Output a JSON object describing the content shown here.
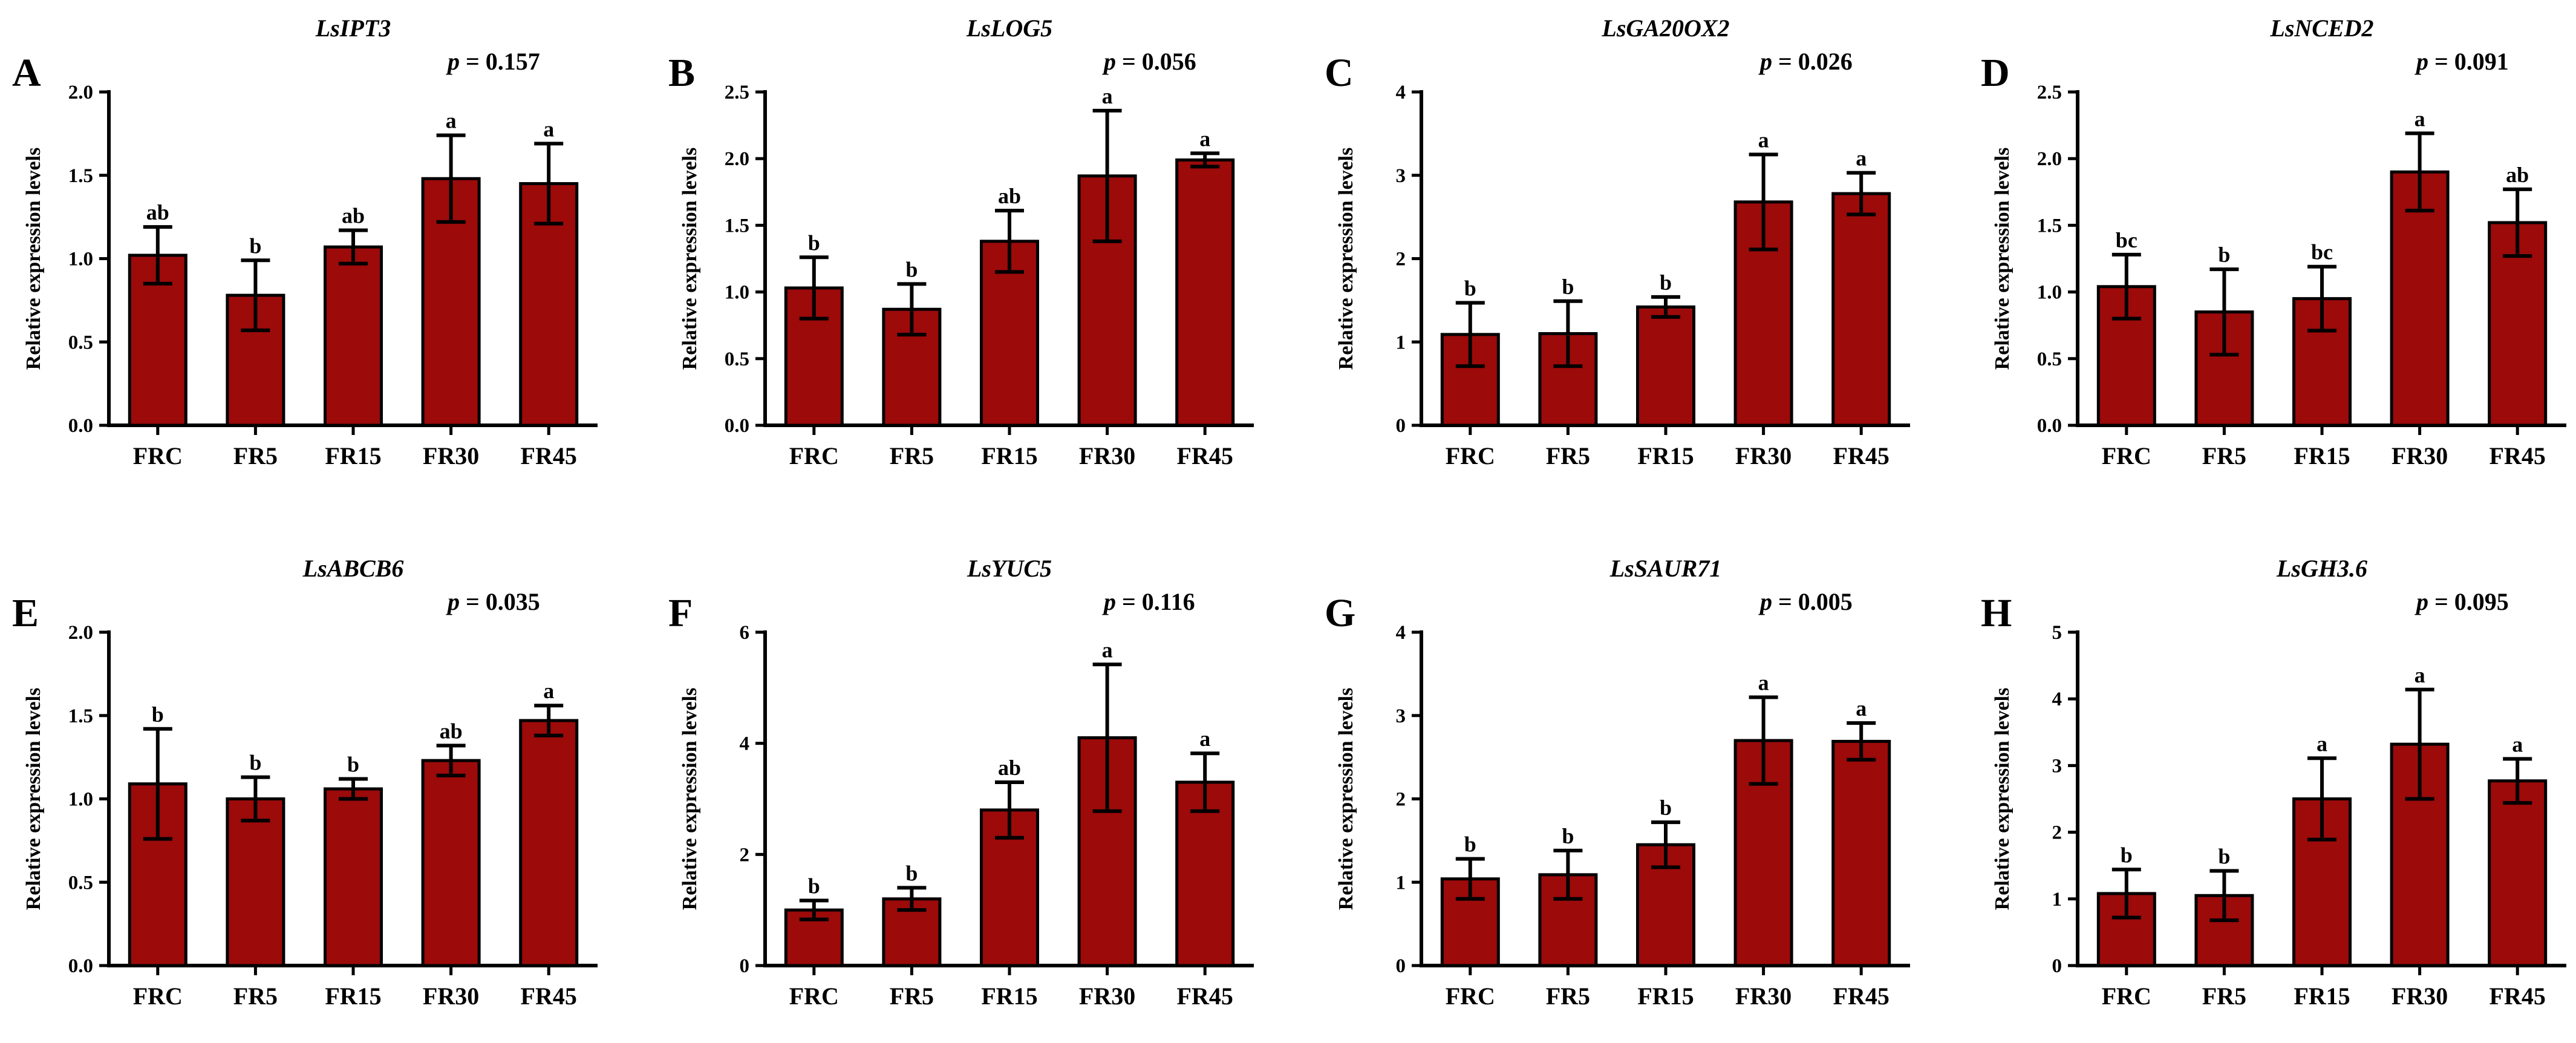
{
  "colors": {
    "bar_fill": "#9C0A0A",
    "axis": "#000000"
  },
  "chart_data": [
    {
      "type": "bar",
      "panel": "A",
      "title": "LsIPT3",
      "p_label": "p",
      "p_value": "= 0.157",
      "ylabel": "Relative expression levels",
      "ylim": [
        0,
        2.0
      ],
      "yticks": [
        0,
        0.5,
        1.0,
        1.5,
        2.0
      ],
      "ytick_labels": [
        "0.0",
        "0.5",
        "1.0",
        "1.5",
        "2.0"
      ],
      "categories": [
        "FRC",
        "FR5",
        "FR15",
        "FR30",
        "FR45"
      ],
      "values": [
        1.02,
        0.78,
        1.07,
        1.48,
        1.45
      ],
      "errors": [
        0.17,
        0.21,
        0.1,
        0.26,
        0.24
      ],
      "sig": [
        "ab",
        "b",
        "ab",
        "a",
        "a"
      ]
    },
    {
      "type": "bar",
      "panel": "B",
      "title": "LsLOG5",
      "p_label": "p",
      "p_value": "= 0.056",
      "ylabel": "Relative expression levels",
      "ylim": [
        0,
        2.5
      ],
      "yticks": [
        0,
        0.5,
        1.0,
        1.5,
        2.0,
        2.5
      ],
      "ytick_labels": [
        "0.0",
        "0.5",
        "1.0",
        "1.5",
        "2.0",
        "2.5"
      ],
      "categories": [
        "FRC",
        "FR5",
        "FR15",
        "FR30",
        "FR45"
      ],
      "values": [
        1.03,
        0.87,
        1.38,
        1.87,
        1.99
      ],
      "errors": [
        0.23,
        0.19,
        0.23,
        0.49,
        0.05
      ],
      "sig": [
        "b",
        "b",
        "ab",
        "a",
        "a"
      ]
    },
    {
      "type": "bar",
      "panel": "C",
      "title": "LsGA20OX2",
      "p_label": "p",
      "p_value": "= 0.026",
      "ylabel": "Relative expression levels",
      "ylim": [
        0,
        4
      ],
      "yticks": [
        0,
        1,
        2,
        3,
        4
      ],
      "ytick_labels": [
        "0",
        "1",
        "2",
        "3",
        "4"
      ],
      "categories": [
        "FRC",
        "FR5",
        "FR15",
        "FR30",
        "FR45"
      ],
      "values": [
        1.09,
        1.1,
        1.42,
        2.68,
        2.78
      ],
      "errors": [
        0.38,
        0.39,
        0.12,
        0.57,
        0.25
      ],
      "sig": [
        "b",
        "b",
        "b",
        "a",
        "a"
      ]
    },
    {
      "type": "bar",
      "panel": "D",
      "title": "LsNCED2",
      "p_label": "p",
      "p_value": "= 0.091",
      "ylabel": "Relative expression levels",
      "ylim": [
        0,
        2.5
      ],
      "yticks": [
        0,
        0.5,
        1.0,
        1.5,
        2.0,
        2.5
      ],
      "ytick_labels": [
        "0.0",
        "0.5",
        "1.0",
        "1.5",
        "2.0",
        "2.5"
      ],
      "categories": [
        "FRC",
        "FR5",
        "FR15",
        "FR30",
        "FR45"
      ],
      "values": [
        1.04,
        0.85,
        0.95,
        1.9,
        1.52
      ],
      "errors": [
        0.24,
        0.32,
        0.24,
        0.29,
        0.25
      ],
      "sig": [
        "bc",
        "b",
        "bc",
        "a",
        "ab"
      ]
    },
    {
      "type": "bar",
      "panel": "E",
      "title": "LsABCB6",
      "p_label": "p",
      "p_value": "= 0.035",
      "ylabel": "Relative expression levels",
      "ylim": [
        0,
        2.0
      ],
      "yticks": [
        0,
        0.5,
        1.0,
        1.5,
        2.0
      ],
      "ytick_labels": [
        "0.0",
        "0.5",
        "1.0",
        "1.5",
        "2.0"
      ],
      "categories": [
        "FRC",
        "FR5",
        "FR15",
        "FR30",
        "FR45"
      ],
      "values": [
        1.09,
        1.0,
        1.06,
        1.23,
        1.47
      ],
      "errors": [
        0.33,
        0.13,
        0.06,
        0.09,
        0.09
      ],
      "sig": [
        "b",
        "b",
        "b",
        "ab",
        "a"
      ]
    },
    {
      "type": "bar",
      "panel": "F",
      "title": "LsYUC5",
      "p_label": "p",
      "p_value": "= 0.116",
      "ylabel": "Relative expression levels",
      "ylim": [
        0,
        6
      ],
      "yticks": [
        0,
        2,
        4,
        6
      ],
      "ytick_labels": [
        "0",
        "2",
        "4",
        "6"
      ],
      "categories": [
        "FRC",
        "FR5",
        "FR15",
        "FR30",
        "FR45"
      ],
      "values": [
        1.0,
        1.2,
        2.8,
        4.1,
        3.3
      ],
      "errors": [
        0.17,
        0.2,
        0.5,
        1.32,
        0.52
      ],
      "sig": [
        "b",
        "b",
        "ab",
        "a",
        "a"
      ]
    },
    {
      "type": "bar",
      "panel": "G",
      "title": "LsSAUR71",
      "p_label": "p",
      "p_value": "= 0.005",
      "ylabel": "Relative expression levels",
      "ylim": [
        0,
        4
      ],
      "yticks": [
        0,
        1,
        2,
        3,
        4
      ],
      "ytick_labels": [
        "0",
        "1",
        "2",
        "3",
        "4"
      ],
      "categories": [
        "FRC",
        "FR5",
        "FR15",
        "FR30",
        "FR45"
      ],
      "values": [
        1.04,
        1.09,
        1.45,
        2.7,
        2.69
      ],
      "errors": [
        0.24,
        0.29,
        0.27,
        0.52,
        0.22
      ],
      "sig": [
        "b",
        "b",
        "b",
        "a",
        "a"
      ]
    },
    {
      "type": "bar",
      "panel": "H",
      "title": "LsGH3.6",
      "p_label": "p",
      "p_value": "= 0.095",
      "ylabel": "Relative expression levels",
      "ylim": [
        0,
        5
      ],
      "yticks": [
        0,
        1,
        2,
        3,
        4,
        5
      ],
      "ytick_labels": [
        "0",
        "1",
        "2",
        "3",
        "4",
        "5"
      ],
      "categories": [
        "FRC",
        "FR5",
        "FR15",
        "FR30",
        "FR45"
      ],
      "values": [
        1.08,
        1.05,
        2.5,
        3.32,
        2.77
      ],
      "errors": [
        0.36,
        0.37,
        0.61,
        0.82,
        0.33
      ],
      "sig": [
        "b",
        "b",
        "a",
        "a",
        "a"
      ]
    }
  ]
}
